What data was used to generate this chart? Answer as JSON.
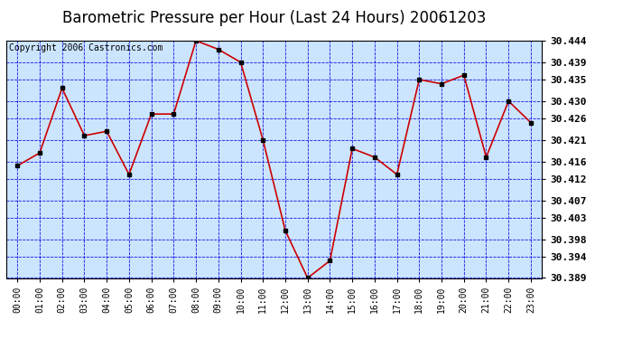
{
  "title": "Barometric Pressure per Hour (Last 24 Hours) 20061203",
  "copyright": "Copyright 2006 Castronics.com",
  "hours": [
    "00:00",
    "01:00",
    "02:00",
    "03:00",
    "04:00",
    "05:00",
    "06:00",
    "07:00",
    "08:00",
    "09:00",
    "10:00",
    "11:00",
    "12:00",
    "13:00",
    "14:00",
    "15:00",
    "16:00",
    "17:00",
    "18:00",
    "19:00",
    "20:00",
    "21:00",
    "22:00",
    "23:00"
  ],
  "values": [
    30.415,
    30.418,
    30.433,
    30.422,
    30.423,
    30.413,
    30.427,
    30.427,
    30.444,
    30.442,
    30.439,
    30.421,
    30.4,
    30.389,
    30.393,
    30.419,
    30.417,
    30.413,
    30.435,
    30.434,
    30.436,
    30.417,
    30.43,
    30.425
  ],
  "ylim_min": 30.389,
  "ylim_max": 30.444,
  "ytick_values": [
    30.444,
    30.439,
    30.435,
    30.43,
    30.426,
    30.421,
    30.416,
    30.412,
    30.407,
    30.403,
    30.398,
    30.394,
    30.389
  ],
  "plot_bg_color": "#cce5ff",
  "line_color": "#cc0000",
  "marker_color": "#000000",
  "grid_color_solid": "#6666ff",
  "grid_color_dash": "#0000dd",
  "title_fontsize": 12,
  "copyright_fontsize": 7,
  "tick_fontsize": 8,
  "xtick_fontsize": 7
}
